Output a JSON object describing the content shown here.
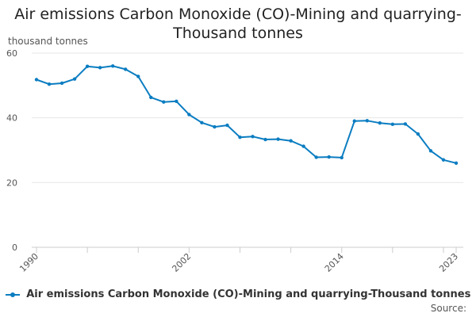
{
  "chart_data": {
    "type": "line",
    "title": "Air emissions Carbon Monoxide (CO)-Mining and quarrying-Thousand tonnes",
    "unit_label": "thousand tonnes",
    "xlabel": "",
    "ylabel": "",
    "x": [
      1990,
      1991,
      1992,
      1993,
      1994,
      1995,
      1996,
      1997,
      1998,
      1999,
      2000,
      2001,
      2002,
      2003,
      2004,
      2005,
      2006,
      2007,
      2008,
      2009,
      2010,
      2011,
      2012,
      2013,
      2014,
      2015,
      2016,
      2017,
      2018,
      2019,
      2020,
      2021,
      2022,
      2023
    ],
    "series": [
      {
        "name": "Air emissions Carbon Monoxide (CO)-Mining and quarrying-Thousand tonnes",
        "color": "#0b7dc1",
        "values": [
          51.8,
          50.4,
          50.7,
          52.0,
          55.9,
          55.5,
          56.0,
          55.0,
          52.8,
          46.3,
          44.9,
          45.1,
          41.0,
          38.5,
          37.2,
          37.7,
          34.0,
          34.2,
          33.3,
          33.4,
          32.9,
          31.2,
          27.8,
          27.9,
          27.7,
          39.0,
          39.1,
          38.4,
          38.0,
          38.1,
          35.0,
          29.8,
          27.0,
          26.0
        ]
      }
    ],
    "ylim": [
      0,
      60
    ],
    "yticks": [
      0,
      20,
      40,
      60
    ],
    "xtick_labels": [
      "1990",
      "2002",
      "2014",
      "2023"
    ],
    "xtick_values": [
      1990,
      2002,
      2014,
      2023
    ],
    "grid": true,
    "legend_position": "bottom",
    "source_label": "Source:"
  }
}
